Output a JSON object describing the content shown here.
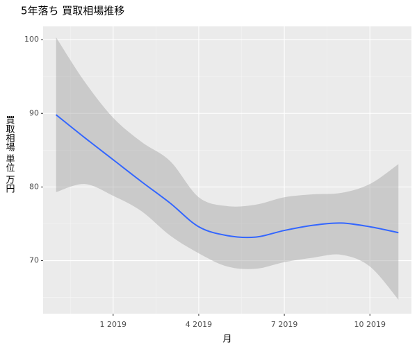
{
  "chart_data": {
    "type": "smooth",
    "title": "5年落ち 買取相場推移",
    "xlabel": "月",
    "ylabel": "買取相場 単位 万円",
    "x": [
      "2018-11",
      "2018-12",
      "2019-01",
      "2019-02",
      "2019-03",
      "2019-04",
      "2019-05",
      "2019-06",
      "2019-07",
      "2019-08",
      "2019-09",
      "2019-10",
      "2019-11"
    ],
    "values": [
      89.8,
      86.7,
      83.7,
      80.7,
      77.8,
      74.6,
      73.4,
      73.2,
      74.1,
      74.8,
      75.1,
      74.6,
      73.8
    ],
    "upper": [
      100.3,
      94.3,
      89.4,
      86.1,
      83.5,
      78.6,
      77.4,
      77.6,
      78.6,
      79.0,
      79.2,
      80.4,
      83.1
    ],
    "lower": [
      79.3,
      80.4,
      78.8,
      76.7,
      73.4,
      71.0,
      69.2,
      68.9,
      69.8,
      70.4,
      70.8,
      69.2,
      64.7
    ],
    "color": "#3366ff",
    "band_color": "#999999",
    "xlim": [
      "2018-11",
      "2019-11"
    ],
    "xticks": [
      {
        "value": "2019-01",
        "label": "1 2019"
      },
      {
        "value": "2019-04",
        "label": "4 2019"
      },
      {
        "value": "2019-07",
        "label": "7 2019"
      },
      {
        "value": "2019-10",
        "label": "10 2019"
      }
    ],
    "ylim": [
      62.8,
      101.8
    ],
    "yticks": [
      70,
      80,
      90,
      100
    ],
    "grid": true
  }
}
